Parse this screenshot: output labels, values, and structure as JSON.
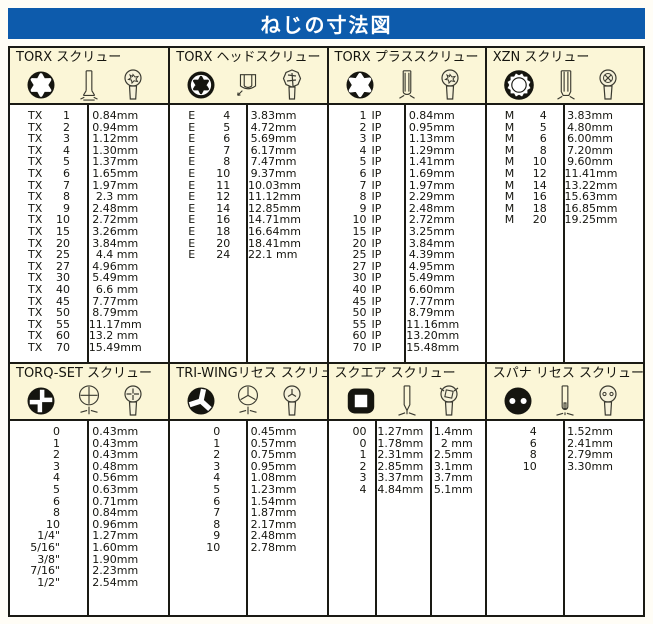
{
  "page_title": "ねじの寸法図",
  "colors": {
    "title_bar_blue": "#0d5bac",
    "title_text": "#ffffff",
    "panel_cream": "#fbf6d7",
    "table_white": "#ffffff",
    "border_black": "#1a1a14"
  },
  "sections": [
    {
      "id": "torx",
      "title": "TORX スクリュー",
      "icons": [
        "torx-face-icon",
        "screw-side-view-icon",
        "screw-top-view-icon"
      ],
      "layout": "pnv",
      "rows": [
        [
          "TX",
          "1",
          "0.84mm"
        ],
        [
          "TX",
          "2",
          "0.94mm"
        ],
        [
          "TX",
          "3",
          "1.12mm"
        ],
        [
          "TX",
          "4",
          "1.30mm"
        ],
        [
          "TX",
          "5",
          "1.37mm"
        ],
        [
          "TX",
          "6",
          "1.65mm"
        ],
        [
          "TX",
          "7",
          "1.97mm"
        ],
        [
          "TX",
          "8",
          "2.3 mm"
        ],
        [
          "TX",
          "9",
          "2.48mm"
        ],
        [
          "TX",
          "10",
          "2.72mm"
        ],
        [
          "TX",
          "15",
          "3.26mm"
        ],
        [
          "TX",
          "20",
          "3.84mm"
        ],
        [
          "TX",
          "25",
          "4.4 mm"
        ],
        [
          "TX",
          "27",
          "4.96mm"
        ],
        [
          "TX",
          "30",
          "5.49mm"
        ],
        [
          "TX",
          "40",
          "6.6 mm"
        ],
        [
          "TX",
          "45",
          "7.77mm"
        ],
        [
          "TX",
          "50",
          "8.79mm"
        ],
        [
          "TX",
          "55",
          "11.17mm"
        ],
        [
          "TX",
          "60",
          "13.2 mm"
        ],
        [
          "TX",
          "70",
          "15.49mm"
        ]
      ]
    },
    {
      "id": "torx-head",
      "title": "TORX ヘッドスクリュー",
      "icons": [
        "external-torx-face-icon",
        "bolt-head-side-view-icon",
        "bolt-top-view-icon"
      ],
      "layout": "pnv",
      "rows": [
        [
          "E",
          "4",
          "3.83mm"
        ],
        [
          "E",
          "5",
          "4.72mm"
        ],
        [
          "E",
          "6",
          "5.69mm"
        ],
        [
          "E",
          "7",
          "6.17mm"
        ],
        [
          "E",
          "8",
          "7.47mm"
        ],
        [
          "E",
          "10",
          "9.37mm"
        ],
        [
          "E",
          "11",
          "10.03mm"
        ],
        [
          "E",
          "12",
          "11.12mm"
        ],
        [
          "E",
          "14",
          "12.85mm"
        ],
        [
          "E",
          "16",
          "14.71mm"
        ],
        [
          "E",
          "18",
          "16.64mm"
        ],
        [
          "E",
          "20",
          "18.41mm"
        ],
        [
          "E",
          "24",
          "22.1 mm"
        ]
      ]
    },
    {
      "id": "torx-plus",
      "title": "TORX プラススクリュー",
      "icons": [
        "torx-plus-face-icon",
        "screw-side-view-icon",
        "screw-top-view-icon"
      ],
      "layout": "nsv",
      "rows": [
        [
          "1",
          "IP",
          "0.84mm"
        ],
        [
          "2",
          "IP",
          "0.95mm"
        ],
        [
          "3",
          "IP",
          "1.13mm"
        ],
        [
          "4",
          "IP",
          "1.29mm"
        ],
        [
          "5",
          "IP",
          "1.41mm"
        ],
        [
          "6",
          "IP",
          "1.69mm"
        ],
        [
          "7",
          "IP",
          "1.97mm"
        ],
        [
          "8",
          "IP",
          "2.29mm"
        ],
        [
          "9",
          "IP",
          "2.48mm"
        ],
        [
          "10",
          "IP",
          "2.72mm"
        ],
        [
          "15",
          "IP",
          "3.25mm"
        ],
        [
          "20",
          "IP",
          "3.84mm"
        ],
        [
          "25",
          "IP",
          "4.39mm"
        ],
        [
          "27",
          "IP",
          "4.95mm"
        ],
        [
          "30",
          "IP",
          "5.49mm"
        ],
        [
          "40",
          "IP",
          "6.60mm"
        ],
        [
          "45",
          "IP",
          "7.77mm"
        ],
        [
          "50",
          "IP",
          "8.79mm"
        ],
        [
          "55",
          "IP",
          "11.16mm"
        ],
        [
          "60",
          "IP",
          "13.20mm"
        ],
        [
          "70",
          "IP",
          "15.48mm"
        ]
      ]
    },
    {
      "id": "xzn",
      "title": "XZN スクリュー",
      "icons": [
        "xzn-triple-square-face-icon",
        "screw-side-view-icon",
        "screw-top-view-icon"
      ],
      "layout": "pnv",
      "rows": [
        [
          "M",
          "4",
          "3.83mm"
        ],
        [
          "M",
          "5",
          "4.80mm"
        ],
        [
          "M",
          "6",
          "6.00mm"
        ],
        [
          "M",
          "8",
          "7.20mm"
        ],
        [
          "M",
          "10",
          "9.60mm"
        ],
        [
          "M",
          "12",
          "11.41mm"
        ],
        [
          "M",
          "14",
          "13.22mm"
        ],
        [
          "M",
          "16",
          "15.63mm"
        ],
        [
          "M",
          "18",
          "16.85mm"
        ],
        [
          "M",
          "20",
          "19.25mm"
        ]
      ]
    },
    {
      "id": "torq-set",
      "title": "TORQ-SET スクリュー",
      "icons": [
        "torq-set-face-icon",
        "recess-gauge-icon",
        "screw-top-view-icon"
      ],
      "layout": "nv",
      "rows": [
        [
          "0",
          "0.43mm"
        ],
        [
          "1",
          "0.43mm"
        ],
        [
          "2",
          "0.43mm"
        ],
        [
          "3",
          "0.48mm"
        ],
        [
          "4",
          "0.56mm"
        ],
        [
          "5",
          "0.63mm"
        ],
        [
          "6",
          "0.71mm"
        ],
        [
          "8",
          "0.84mm"
        ],
        [
          "10",
          "0.96mm"
        ],
        [
          "1/4\"",
          "1.27mm"
        ],
        [
          "5/16\"",
          "1.60mm"
        ],
        [
          "3/8\"",
          "1.90mm"
        ],
        [
          "7/16\"",
          "2.23mm"
        ],
        [
          "1/2\"",
          "2.54mm"
        ]
      ]
    },
    {
      "id": "tri-wing",
      "title": "TRI-WINGリセス スクリュー",
      "icons": [
        "tri-wing-face-icon",
        "recess-gauge-icon",
        "screw-top-view-icon"
      ],
      "layout": "nv",
      "rows": [
        [
          "0",
          "0.45mm"
        ],
        [
          "1",
          "0.57mm"
        ],
        [
          "2",
          "0.75mm"
        ],
        [
          "3",
          "0.95mm"
        ],
        [
          "4",
          "1.08mm"
        ],
        [
          "5",
          "1.23mm"
        ],
        [
          "6",
          "1.54mm"
        ],
        [
          "7",
          "1.87mm"
        ],
        [
          "8",
          "2.17mm"
        ],
        [
          "9",
          "2.48mm"
        ],
        [
          "10",
          "2.78mm"
        ]
      ]
    },
    {
      "id": "square",
      "title": "スクエア スクリュー",
      "icons": [
        "square-recess-face-icon",
        "bit-tip-side-view-icon",
        "screw-top-view-icon"
      ],
      "layout": "nvv",
      "rows": [
        [
          "00",
          "1.27mm",
          "1.4mm"
        ],
        [
          "0",
          "1.78mm",
          "2 mm"
        ],
        [
          "1",
          "2.31mm",
          "2.5mm"
        ],
        [
          "2",
          "2.85mm",
          "3.1mm"
        ],
        [
          "3",
          "3.37mm",
          "3.7mm"
        ],
        [
          "4",
          "4.84mm",
          "5.1mm"
        ]
      ]
    },
    {
      "id": "spanner",
      "title": "スパナ リセス スクリュー",
      "icons": [
        "spanner-two-hole-face-icon",
        "bit-tip-side-view-icon",
        "screw-top-view-icon"
      ],
      "layout": "nv",
      "rows": [
        [
          "4",
          "1.52mm"
        ],
        [
          "6",
          "2.41mm"
        ],
        [
          "8",
          "2.79mm"
        ],
        [
          "10",
          "3.30mm"
        ]
      ]
    }
  ]
}
